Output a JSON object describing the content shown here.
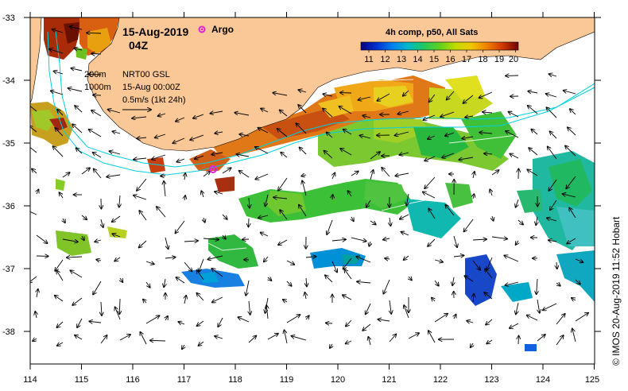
{
  "title": {
    "date": "15-Aug-2019",
    "time": "04Z"
  },
  "argo_label": "Argo",
  "colorbar": {
    "title": "4h comp, p50, All Sats",
    "ticks": [
      "11",
      "12",
      "13",
      "14",
      "15",
      "16",
      "17",
      "18",
      "19",
      "20"
    ],
    "colors": [
      "#000080",
      "#0033cc",
      "#0077ee",
      "#00aadd",
      "#00c8a0",
      "#22cc44",
      "#88d400",
      "#e8e000",
      "#f0a000",
      "#e06000",
      "#c02800",
      "#800000"
    ]
  },
  "legend": {
    "isobath_200": "200m",
    "isobath_1000": "1000m",
    "source": "NRT00 GSL",
    "valid": "15-Aug 00:00Z",
    "scale": "0.5m/s (1kt 24h)"
  },
  "axes": {
    "lon_labels": [
      "114",
      "115",
      "116",
      "117",
      "118",
      "119",
      "120",
      "121",
      "122",
      "123",
      "124",
      "125"
    ],
    "lat_labels": [
      "-33",
      "-34",
      "-35",
      "-36",
      "-37",
      "-38"
    ]
  },
  "copyright": "© IMOS 20-Aug-2019 11:52 Hobart",
  "colors": {
    "land": "#fac896",
    "isobath": "#00d0e0",
    "argo": "#e020e0"
  }
}
